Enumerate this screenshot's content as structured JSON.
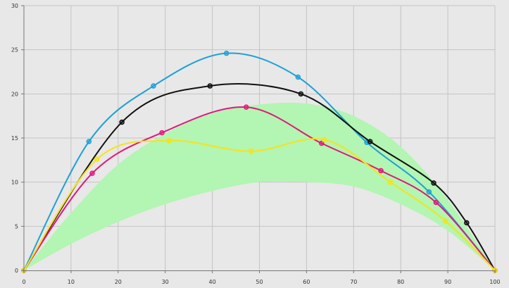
{
  "chart_data": {
    "type": "line",
    "xlim": [
      0,
      100
    ],
    "ylim": [
      0,
      30
    ],
    "x_ticks": [
      0,
      10,
      20,
      30,
      40,
      50,
      60,
      70,
      80,
      90,
      100
    ],
    "y_ticks": [
      0,
      5,
      10,
      15,
      20,
      25,
      30
    ],
    "grid": true,
    "band": {
      "color": "#b3f5b3",
      "x": [
        0,
        10,
        20,
        30,
        40,
        50,
        60,
        70,
        80,
        90,
        100
      ],
      "lower": [
        0,
        3.0,
        5.5,
        7.5,
        9.0,
        10.0,
        10.0,
        9.5,
        7.5,
        4.5,
        0
      ],
      "upper": [
        0,
        6.5,
        12.0,
        15.5,
        17.8,
        18.8,
        18.9,
        17.5,
        14.0,
        8.0,
        0
      ]
    },
    "series": [
      {
        "color": "#1ea0d8",
        "points": [
          [
            0,
            0
          ],
          [
            13.8,
            14.6
          ],
          [
            27.5,
            20.9
          ],
          [
            43.0,
            24.6
          ],
          [
            58.2,
            21.9
          ],
          [
            72.8,
            14.5
          ],
          [
            86.0,
            8.9
          ],
          [
            100,
            0
          ]
        ]
      },
      {
        "color": "#111111",
        "points": [
          [
            0,
            0
          ],
          [
            20.8,
            16.8
          ],
          [
            39.5,
            20.9
          ],
          [
            58.8,
            20.0
          ],
          [
            73.5,
            14.6
          ],
          [
            87.0,
            9.9
          ],
          [
            94.0,
            5.4
          ],
          [
            100,
            0
          ]
        ]
      },
      {
        "color": "#e0187a",
        "points": [
          [
            0,
            0
          ],
          [
            14.5,
            11.0
          ],
          [
            29.3,
            15.6
          ],
          [
            47.2,
            18.5
          ],
          [
            63.2,
            14.4
          ],
          [
            75.8,
            11.3
          ],
          [
            87.5,
            7.7
          ],
          [
            100,
            0
          ]
        ]
      },
      {
        "color": "#f5e31a",
        "points": [
          [
            0,
            0
          ],
          [
            15.5,
            12.6
          ],
          [
            30.8,
            14.7
          ],
          [
            48.2,
            13.5
          ],
          [
            63.8,
            14.8
          ],
          [
            77.8,
            10.0
          ],
          [
            89.5,
            5.6
          ],
          [
            100,
            0
          ]
        ]
      }
    ]
  }
}
